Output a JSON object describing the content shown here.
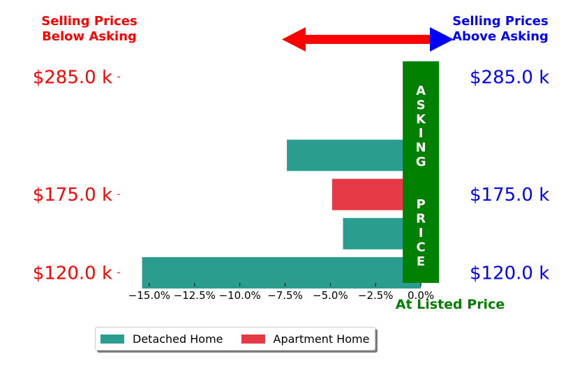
{
  "labels": {
    "left": "Selling Prices\nBelow Asking",
    "right": "Selling Prices\nAbove Asking",
    "center": "ASKING  PRICE",
    "listed": "At Listed Price"
  },
  "colors": {
    "detached": "#2a9d8f",
    "apartment": "#e63946",
    "asking_bar": "#008000",
    "left_text": "#ff0000",
    "right_text": "#0000ff",
    "arrow_left": "#ff0000",
    "arrow_right": "#0000ff"
  },
  "legend": [
    {
      "name": "Detached Home",
      "color": "#2a9d8f"
    },
    {
      "name": "Apartment Home",
      "color": "#e63946"
    }
  ],
  "chart_data": {
    "type": "bar",
    "orientation": "horizontal",
    "xlabel": "At Listed Price",
    "xlim": [
      -16.5,
      1.5
    ],
    "x_ticks": [
      -15.0,
      -12.5,
      -10.0,
      -7.5,
      -5.0,
      -2.5,
      0.0
    ],
    "x_tick_labels": [
      "−15.0%",
      "−12.5%",
      "−10.0%",
      "−7.5%",
      "−5.0%",
      "−2.5%",
      "0.0%"
    ],
    "y_tick_labels_left": [
      "$285.0 k",
      "$175.0 k",
      "$120.0 k"
    ],
    "y_tick_labels_right": [
      "$285.0 k",
      "$175.0 k",
      "$120.0 k"
    ],
    "y_tick_rows": [
      0,
      3,
      5
    ],
    "rows": [
      {
        "row": 0,
        "label": "$285.0 k",
        "series": null,
        "value": 0.0
      },
      {
        "row": 1,
        "series": "Apartment Home",
        "value": 0.6
      },
      {
        "row": 2,
        "series": "Detached Home",
        "value": -7.4
      },
      {
        "row": 3,
        "label": "$175.0 k",
        "series": "Apartment Home",
        "value": -4.9
      },
      {
        "row": 4,
        "series": "Detached Home",
        "value": -4.3
      },
      {
        "row": 5,
        "label": "$120.0 k",
        "series": "Detached Home",
        "value": -15.4
      }
    ],
    "asking_price_band": [
      -1.0,
      1.0
    ],
    "legend_position": "bottom-left",
    "grid": false
  }
}
